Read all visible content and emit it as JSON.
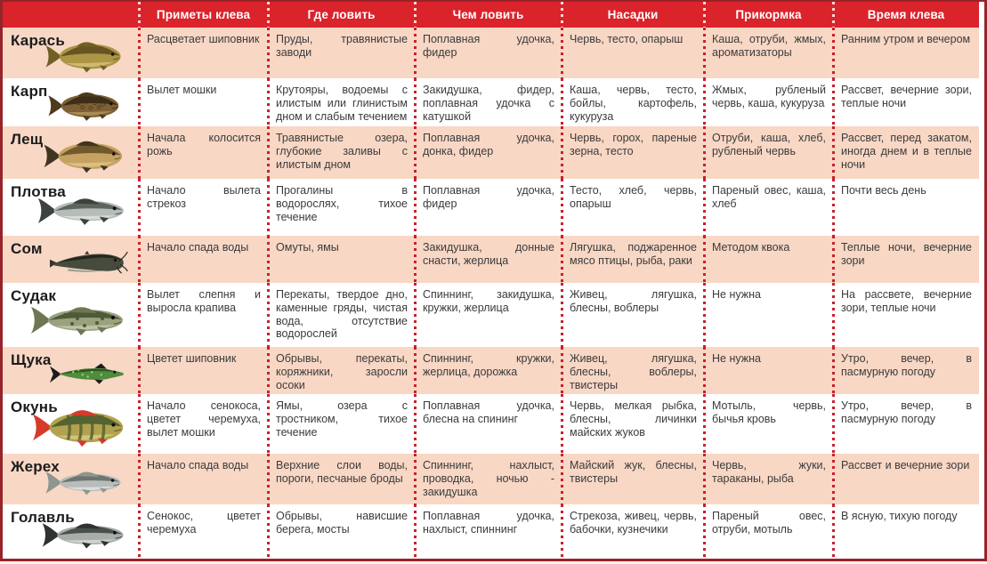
{
  "colors": {
    "header_bg": "#da232b",
    "row_pink_bg": "#f8d7c5",
    "row_white_bg": "#ffffff",
    "divider_dot": "#c9202b",
    "outer_border": "#96242a",
    "header_text": "#ffffff",
    "cell_text": "#3b3b3b",
    "fish_name_text": "#1c1c1c"
  },
  "table": {
    "headers": [
      "Приметы клева",
      "Где ловить",
      "Чем ловить",
      "Насадки",
      "Прикормка",
      "Время клева"
    ],
    "rows": [
      {
        "slug": "karas",
        "icon": "crucian-carp-fish-icon",
        "name": "Карась",
        "fish": {
          "variant": "deep",
          "body": "#ac9544",
          "back": "#665523",
          "fin": "#716025",
          "belly": "#d7c37a"
        },
        "cells": [
          "Расцветает шиповник",
          "Пруды, травянистые заводи",
          "Поплавная удочка, фидер",
          "Червь, тесто, опарыш",
          "Каша, отруби, жмых, ароматизаторы",
          "Ранним утром и вечером"
        ]
      },
      {
        "slug": "karp",
        "icon": "carp-fish-icon",
        "name": "Карп",
        "fish": {
          "variant": "deep",
          "body": "#7e6034",
          "back": "#3e2e16",
          "fin": "#4e3a1d",
          "belly": "#b3975c",
          "pattern": "scales"
        },
        "cells": [
          "Вылет мошки",
          "Крутояры, водоемы с илистым или глинистым дном и слабым течением",
          "Закидушка, фидер, поплавная удочка с катушкой",
          "Каша, червь, тесто, бойлы, картофель, кукуруза",
          "Жмых, рубленый червь, каша, кукуруза",
          "Рассвет, вечерние зори, теплые ночи"
        ]
      },
      {
        "slug": "leshch",
        "icon": "bream-fish-icon",
        "name": "Лещ",
        "fish": {
          "variant": "deep",
          "body": "#c5a261",
          "back": "#72592d",
          "fin": "#3f3622",
          "belly": "#e0c88d"
        },
        "cells": [
          "Начала колосится рожь",
          "Травянистые озера, глубокие заливы с илистым дном",
          "Поплавная удочка, донка, фидер",
          "Червь, горох, пареные зерна, тесто",
          "Отруби, каша, хлеб, рубленый червь",
          "Рассвет, перед закатом, иногда днем и в теплые ночи"
        ]
      },
      {
        "slug": "plotva",
        "icon": "roach-fish-icon",
        "name": "Плотва",
        "fish": {
          "variant": "slim",
          "body": "#b6bcb8",
          "back": "#5c665f",
          "fin": "#3c423d",
          "belly": "#dfe3e0"
        },
        "cells": [
          "Начало вылета стрекоз",
          "Прогалины в водорослях, тихое течение",
          "Поплавная удочка, фидер",
          "Тесто, хлеб, червь, опарыш",
          "Пареный овес, каша, хлеб",
          "Почти весь день"
        ]
      },
      {
        "slug": "som",
        "icon": "catfish-fish-icon",
        "name": "Сом",
        "fish": {
          "variant": "catfish",
          "body": "#474b3e",
          "back": "#24271f",
          "fin": "#32362b",
          "belly": "#9aa08f"
        },
        "cells": [
          "Начало спада воды",
          "Омуты, ямы",
          "Закидушка, донные снасти, жерлица",
          "Лягушка, поджаренное мясо птицы, рыба, раки",
          "Методом квока",
          "Теплые ночи, вечерние зори"
        ]
      },
      {
        "slug": "sudak",
        "icon": "zander-fish-icon",
        "name": "Судак",
        "fish": {
          "variant": "slim",
          "body": "#99a27d",
          "back": "#4f5a39",
          "fin": "#6e7753",
          "belly": "#c6ccb2",
          "pattern": "blotches"
        },
        "cells": [
          "Вылет слепня и выросла крапива",
          "Перекаты, твердое дно, каменные гряды, чистая вода, отсутствие водорослей",
          "Спиннинг, закидушка, кружки, жерлица",
          "Живец, лягушка, блесны, воблеры",
          "Не нужна",
          "На рассвете, вечерние зори, теплые ночи"
        ]
      },
      {
        "slug": "shchuka",
        "icon": "pike-fish-icon",
        "name": "Щука",
        "fish": {
          "variant": "pike",
          "body": "#4f8c3c",
          "back": "#2c5522",
          "fin": "#1c1c1c",
          "belly": "#a9cb76",
          "pattern": "spots"
        },
        "cells": [
          "Цветет шиповник",
          "Обрывы, перекаты, коряжники, заросли осоки",
          "Спиннинг, кружки, жерлица, дорожка",
          "Живец, лягушка, блесны, воблеры, твистеры",
          "Не нужна",
          "Утро, вечер, в пасмурную погоду"
        ]
      },
      {
        "slug": "okun",
        "icon": "perch-fish-icon",
        "name": "Окунь",
        "fish": {
          "variant": "deep",
          "body": "#b2a24e",
          "back": "#556330",
          "fin": "#d63a2b",
          "belly": "#d9cd8a",
          "pattern": "stripes"
        },
        "cells": [
          "Начало сенокоса, цветет черемуха, вылет мошки",
          "Ямы, озера с тростником, тихое течение",
          "Поплавная удочка, блесна на спининг",
          "Червь, мелкая рыбка, блесны, личинки майских жуков",
          "Мотыль, червь, бычья кровь",
          "Утро, вечер, в пасмурную погоду"
        ]
      },
      {
        "slug": "zherekh",
        "icon": "asp-fish-icon",
        "name": "Жерех",
        "fish": {
          "variant": "slim",
          "body": "#b9bdb9",
          "back": "#6e7670",
          "fin": "#8f958f",
          "belly": "#e2e5e2"
        },
        "cells": [
          "Начало спада воды",
          "Верхние слои воды, пороги, песчаные броды",
          "Спиннинг, нахлыст, проводка, ночью - закидушка",
          "Майский жук, блесны, твистеры",
          "Червь, жуки, тараканы, рыба",
          "Рассвет и вечерние зори"
        ]
      },
      {
        "slug": "golavl",
        "icon": "chub-fish-icon",
        "name": "Голавль",
        "fish": {
          "variant": "slim",
          "body": "#a8adaa",
          "back": "#4a514c",
          "fin": "#2e3330",
          "belly": "#d8dbd8"
        },
        "cells": [
          "Сенокос, цветет черемуха",
          "Обрывы, нависшие берега, мосты",
          "Поплавная удочка, нахлыст, спиннинг",
          "Стрекоза, живец, червь, бабочки, кузнечики",
          "Пареный овес, отруби, мотыль",
          "В ясную, тихую погоду"
        ]
      }
    ]
  }
}
